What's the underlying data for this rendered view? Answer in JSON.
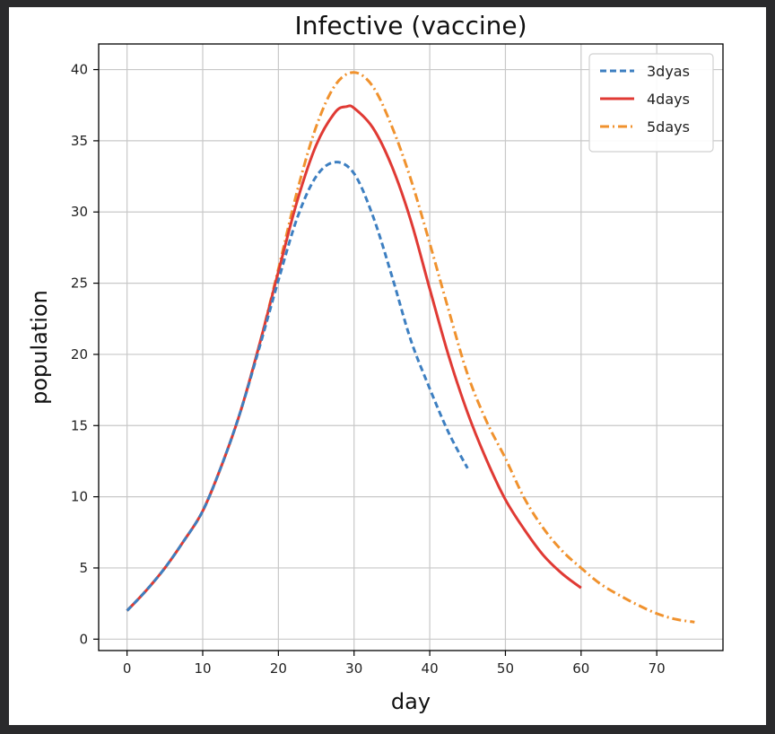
{
  "chart_data": {
    "type": "line",
    "title": "Infective (vaccine)",
    "xlabel": "day",
    "ylabel": "population",
    "xlim": [
      -3.75,
      78.75
    ],
    "ylim": [
      -0.8,
      41.8
    ],
    "xticks": [
      0,
      10,
      20,
      30,
      40,
      50,
      60,
      70
    ],
    "yticks": [
      0,
      5,
      10,
      15,
      20,
      25,
      30,
      35,
      40
    ],
    "grid": true,
    "legend_position": "top-right",
    "series": [
      {
        "name": "3dyas",
        "color": "#3d7fc1",
        "dash": "dashed",
        "x": [
          0,
          2.5,
          5,
          7.5,
          10,
          12.5,
          15,
          17.5,
          20,
          22.5,
          25,
          27.5,
          30,
          32.5,
          35,
          37.5,
          40,
          42.5,
          45
        ],
        "y": [
          2.0,
          3.4,
          5.0,
          6.9,
          9.0,
          12.2,
          16.0,
          20.5,
          25.2,
          29.6,
          32.5,
          33.5,
          32.7,
          29.7,
          25.5,
          21.0,
          17.6,
          14.5,
          12.0
        ]
      },
      {
        "name": "4days",
        "color": "#e03a34",
        "dash": "solid",
        "x": [
          0,
          2.5,
          5,
          7.5,
          10,
          12.5,
          15,
          17.5,
          20,
          22.5,
          25,
          27.5,
          29,
          30,
          32.5,
          35,
          37.5,
          40,
          42.5,
          45,
          47.5,
          50,
          52.5,
          55,
          57.5,
          60
        ],
        "y": [
          2.0,
          3.4,
          5.0,
          6.9,
          9.0,
          12.2,
          16.0,
          20.7,
          25.8,
          30.8,
          34.7,
          37.0,
          37.4,
          37.3,
          35.9,
          33.2,
          29.4,
          24.6,
          19.9,
          15.9,
          12.6,
          9.8,
          7.7,
          5.9,
          4.6,
          3.6
        ]
      },
      {
        "name": "5days",
        "color": "#f0922e",
        "dash": "dashdot",
        "x": [
          0,
          2.5,
          5,
          7.5,
          10,
          12.5,
          15,
          17.5,
          20,
          22.5,
          25,
          27.5,
          30,
          32.5,
          35,
          37.5,
          40,
          42.5,
          45,
          47.5,
          50,
          52.5,
          55,
          57.5,
          60,
          62.5,
          65,
          67.5,
          70,
          72.5,
          75
        ],
        "y": [
          2.0,
          3.4,
          5.0,
          6.9,
          9.0,
          12.2,
          16.0,
          20.7,
          26.0,
          31.5,
          36.0,
          38.9,
          39.8,
          38.8,
          36.0,
          32.3,
          27.8,
          23.1,
          18.6,
          15.3,
          12.7,
          9.9,
          7.8,
          6.2,
          5.0,
          3.9,
          3.1,
          2.4,
          1.8,
          1.4,
          1.2
        ]
      }
    ]
  }
}
